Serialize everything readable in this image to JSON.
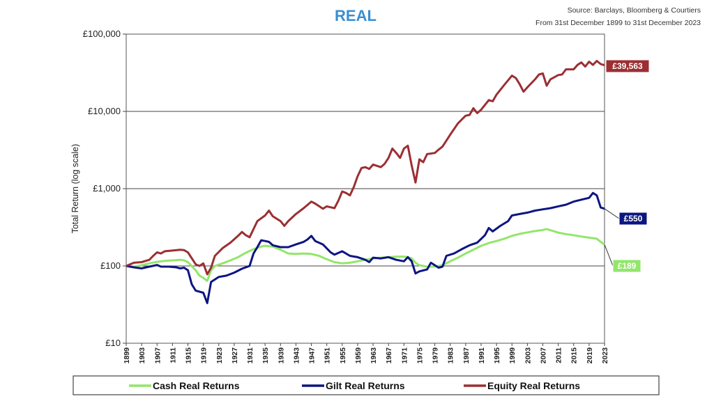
{
  "chart_data": {
    "type": "line",
    "title": "REAL",
    "source_line1": "Source: Barclays, Bloomberg & Courtiers",
    "source_line2": "From 31st December 1899 to 31st December 2023",
    "ylabel": "Total Return (log scale)",
    "xlabel": "",
    "y_scale": "log",
    "ylim": [
      10,
      100000
    ],
    "xlim": [
      1899,
      2023
    ],
    "grid": "horizontal",
    "legend_position": "bottom",
    "y_ticks": [
      {
        "value": 10,
        "label": "£10"
      },
      {
        "value": 100,
        "label": "£100"
      },
      {
        "value": 1000,
        "label": "£1,000"
      },
      {
        "value": 10000,
        "label": "£10,000"
      },
      {
        "value": 100000,
        "label": "£100,000"
      }
    ],
    "x_ticks": [
      "1899",
      "1903",
      "1907",
      "1911",
      "1915",
      "1919",
      "1923",
      "1927",
      "1931",
      "1935",
      "1939",
      "1943",
      "1947",
      "1951",
      "1955",
      "1959",
      "1963",
      "1967",
      "1971",
      "1975",
      "1979",
      "1983",
      "1987",
      "1991",
      "1995",
      "1999",
      "2003",
      "2007",
      "2011",
      "2015",
      "2019",
      "2023"
    ],
    "series": [
      {
        "name": "Cash Real Returns",
        "color": "#92e66a",
        "end_label": "£189",
        "points": [
          [
            1899,
            100
          ],
          [
            1901,
            98
          ],
          [
            1903,
            102
          ],
          [
            1905,
            108
          ],
          [
            1907,
            113
          ],
          [
            1909,
            116
          ],
          [
            1911,
            118
          ],
          [
            1913,
            120
          ],
          [
            1914,
            118
          ],
          [
            1915,
            112
          ],
          [
            1917,
            88
          ],
          [
            1918,
            75
          ],
          [
            1919,
            70
          ],
          [
            1920,
            64
          ],
          [
            1921,
            88
          ],
          [
            1922,
            100
          ],
          [
            1924,
            108
          ],
          [
            1926,
            118
          ],
          [
            1928,
            130
          ],
          [
            1930,
            148
          ],
          [
            1932,
            165
          ],
          [
            1934,
            178
          ],
          [
            1935,
            182
          ],
          [
            1937,
            178
          ],
          [
            1939,
            162
          ],
          [
            1941,
            145
          ],
          [
            1943,
            143
          ],
          [
            1945,
            145
          ],
          [
            1947,
            143
          ],
          [
            1949,
            135
          ],
          [
            1951,
            122
          ],
          [
            1953,
            112
          ],
          [
            1955,
            108
          ],
          [
            1957,
            110
          ],
          [
            1959,
            115
          ],
          [
            1961,
            120
          ],
          [
            1963,
            125
          ],
          [
            1965,
            128
          ],
          [
            1967,
            130
          ],
          [
            1969,
            132
          ],
          [
            1971,
            132
          ],
          [
            1972,
            130
          ],
          [
            1973,
            125
          ],
          [
            1974,
            110
          ],
          [
            1975,
            102
          ],
          [
            1977,
            98
          ],
          [
            1979,
            98
          ],
          [
            1981,
            102
          ],
          [
            1983,
            115
          ],
          [
            1985,
            128
          ],
          [
            1987,
            145
          ],
          [
            1989,
            162
          ],
          [
            1991,
            182
          ],
          [
            1993,
            198
          ],
          [
            1995,
            210
          ],
          [
            1997,
            225
          ],
          [
            1999,
            245
          ],
          [
            2001,
            260
          ],
          [
            2003,
            272
          ],
          [
            2005,
            283
          ],
          [
            2007,
            292
          ],
          [
            2008,
            300
          ],
          [
            2009,
            290
          ],
          [
            2011,
            270
          ],
          [
            2013,
            258
          ],
          [
            2015,
            250
          ],
          [
            2017,
            240
          ],
          [
            2019,
            232
          ],
          [
            2021,
            225
          ],
          [
            2022,
            205
          ],
          [
            2023,
            189
          ]
        ]
      },
      {
        "name": "Gilt Real Returns",
        "color": "#0d1580",
        "end_label": "£550",
        "points": [
          [
            1899,
            100
          ],
          [
            1901,
            96
          ],
          [
            1903,
            93
          ],
          [
            1905,
            98
          ],
          [
            1907,
            103
          ],
          [
            1908,
            98
          ],
          [
            1910,
            98
          ],
          [
            1912,
            96
          ],
          [
            1913,
            93
          ],
          [
            1914,
            95
          ],
          [
            1915,
            88
          ],
          [
            1916,
            58
          ],
          [
            1917,
            48
          ],
          [
            1919,
            45
          ],
          [
            1920,
            33
          ],
          [
            1921,
            62
          ],
          [
            1923,
            72
          ],
          [
            1925,
            75
          ],
          [
            1927,
            82
          ],
          [
            1929,
            92
          ],
          [
            1931,
            100
          ],
          [
            1932,
            145
          ],
          [
            1933,
            175
          ],
          [
            1934,
            215
          ],
          [
            1935,
            210
          ],
          [
            1936,
            205
          ],
          [
            1937,
            185
          ],
          [
            1939,
            175
          ],
          [
            1941,
            175
          ],
          [
            1943,
            190
          ],
          [
            1945,
            205
          ],
          [
            1946,
            220
          ],
          [
            1947,
            245
          ],
          [
            1948,
            210
          ],
          [
            1950,
            190
          ],
          [
            1952,
            150
          ],
          [
            1953,
            140
          ],
          [
            1955,
            155
          ],
          [
            1957,
            135
          ],
          [
            1959,
            130
          ],
          [
            1961,
            120
          ],
          [
            1962,
            112
          ],
          [
            1963,
            128
          ],
          [
            1965,
            125
          ],
          [
            1967,
            130
          ],
          [
            1969,
            120
          ],
          [
            1971,
            115
          ],
          [
            1972,
            130
          ],
          [
            1973,
            115
          ],
          [
            1974,
            80
          ],
          [
            1975,
            85
          ],
          [
            1977,
            90
          ],
          [
            1978,
            110
          ],
          [
            1980,
            95
          ],
          [
            1981,
            98
          ],
          [
            1982,
            135
          ],
          [
            1984,
            145
          ],
          [
            1986,
            165
          ],
          [
            1988,
            185
          ],
          [
            1990,
            200
          ],
          [
            1992,
            250
          ],
          [
            1993,
            310
          ],
          [
            1994,
            280
          ],
          [
            1996,
            330
          ],
          [
            1998,
            380
          ],
          [
            1999,
            450
          ],
          [
            2001,
            470
          ],
          [
            2003,
            490
          ],
          [
            2005,
            520
          ],
          [
            2007,
            540
          ],
          [
            2009,
            560
          ],
          [
            2011,
            590
          ],
          [
            2013,
            620
          ],
          [
            2015,
            680
          ],
          [
            2017,
            720
          ],
          [
            2019,
            760
          ],
          [
            2020,
            880
          ],
          [
            2021,
            820
          ],
          [
            2022,
            570
          ],
          [
            2023,
            550
          ]
        ]
      },
      {
        "name": "Equity Real Returns",
        "color": "#9b2f33",
        "end_label": "£39,563",
        "points": [
          [
            1899,
            100
          ],
          [
            1901,
            110
          ],
          [
            1903,
            112
          ],
          [
            1905,
            120
          ],
          [
            1906,
            135
          ],
          [
            1907,
            150
          ],
          [
            1908,
            145
          ],
          [
            1909,
            155
          ],
          [
            1911,
            158
          ],
          [
            1913,
            162
          ],
          [
            1914,
            160
          ],
          [
            1915,
            150
          ],
          [
            1917,
            105
          ],
          [
            1918,
            100
          ],
          [
            1919,
            108
          ],
          [
            1920,
            78
          ],
          [
            1921,
            95
          ],
          [
            1922,
            135
          ],
          [
            1924,
            170
          ],
          [
            1926,
            200
          ],
          [
            1928,
            245
          ],
          [
            1929,
            275
          ],
          [
            1930,
            250
          ],
          [
            1931,
            235
          ],
          [
            1932,
            300
          ],
          [
            1933,
            380
          ],
          [
            1935,
            450
          ],
          [
            1936,
            520
          ],
          [
            1937,
            440
          ],
          [
            1939,
            380
          ],
          [
            1940,
            330
          ],
          [
            1941,
            380
          ],
          [
            1943,
            470
          ],
          [
            1945,
            560
          ],
          [
            1947,
            680
          ],
          [
            1948,
            640
          ],
          [
            1950,
            550
          ],
          [
            1951,
            590
          ],
          [
            1953,
            560
          ],
          [
            1954,
            700
          ],
          [
            1955,
            920
          ],
          [
            1956,
            880
          ],
          [
            1957,
            820
          ],
          [
            1958,
            1050
          ],
          [
            1959,
            1450
          ],
          [
            1960,
            1850
          ],
          [
            1961,
            1900
          ],
          [
            1962,
            1800
          ],
          [
            1963,
            2050
          ],
          [
            1965,
            1900
          ],
          [
            1966,
            2100
          ],
          [
            1967,
            2500
          ],
          [
            1968,
            3300
          ],
          [
            1969,
            2900
          ],
          [
            1970,
            2500
          ],
          [
            1971,
            3300
          ],
          [
            1972,
            3600
          ],
          [
            1973,
            2000
          ],
          [
            1974,
            1200
          ],
          [
            1975,
            2400
          ],
          [
            1976,
            2200
          ],
          [
            1977,
            2800
          ],
          [
            1979,
            2900
          ],
          [
            1980,
            3200
          ],
          [
            1981,
            3500
          ],
          [
            1983,
            5000
          ],
          [
            1985,
            7000
          ],
          [
            1987,
            8800
          ],
          [
            1988,
            9000
          ],
          [
            1989,
            11000
          ],
          [
            1990,
            9500
          ],
          [
            1991,
            10500
          ],
          [
            1993,
            14000
          ],
          [
            1994,
            13500
          ],
          [
            1995,
            16500
          ],
          [
            1997,
            22000
          ],
          [
            1999,
            29000
          ],
          [
            2000,
            27000
          ],
          [
            2001,
            22500
          ],
          [
            2002,
            18000
          ],
          [
            2003,
            20500
          ],
          [
            2005,
            26000
          ],
          [
            2006,
            30000
          ],
          [
            2007,
            31000
          ],
          [
            2008,
            21500
          ],
          [
            2009,
            26000
          ],
          [
            2011,
            29500
          ],
          [
            2012,
            30000
          ],
          [
            2013,
            35000
          ],
          [
            2015,
            35000
          ],
          [
            2016,
            40000
          ],
          [
            2017,
            43000
          ],
          [
            2018,
            38000
          ],
          [
            2019,
            44000
          ],
          [
            2020,
            40000
          ],
          [
            2021,
            45000
          ],
          [
            2022,
            41000
          ],
          [
            2023,
            39563
          ]
        ]
      }
    ]
  }
}
